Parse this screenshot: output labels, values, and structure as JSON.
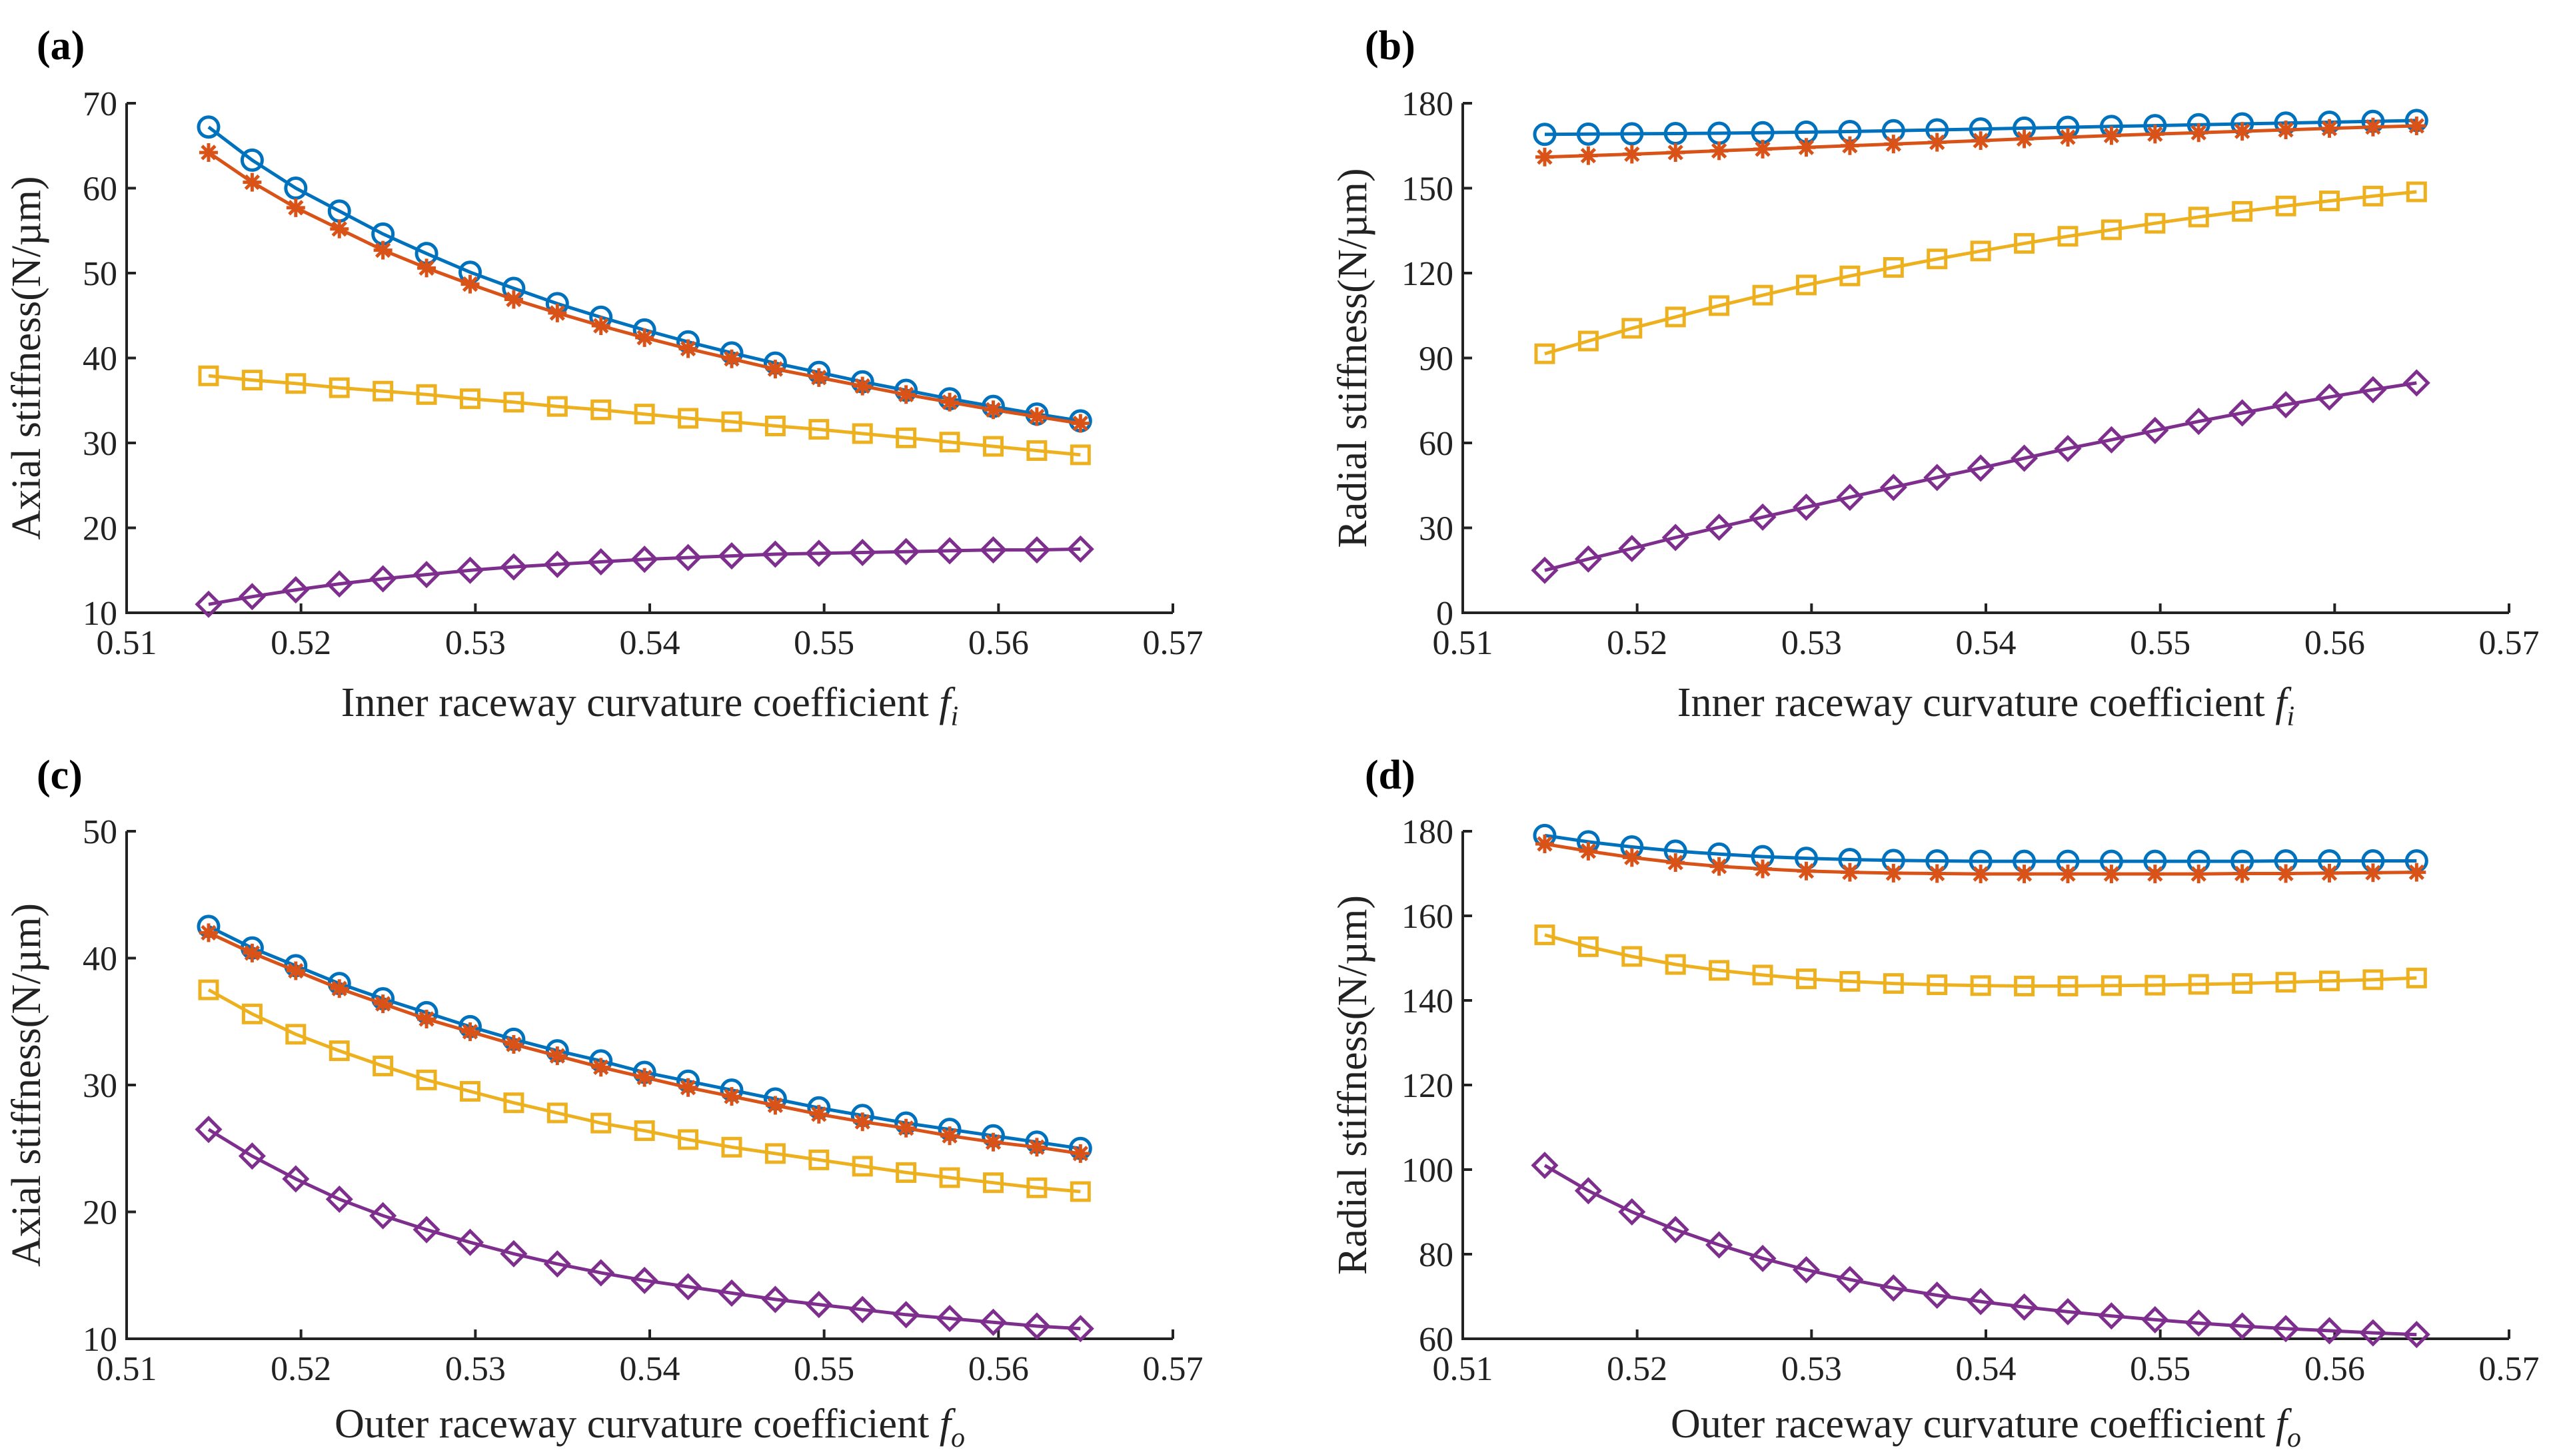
{
  "chart_data": [
    {
      "id": "a",
      "type": "line",
      "panel_label": "(a)",
      "xlabel": "Inner raceway curvature coefficient ",
      "xlabel_symbol": "f",
      "xlabel_subscript": "i",
      "ylabel": "Axial stiffness(N/µm)",
      "xlim": [
        0.51,
        0.57
      ],
      "ylim": [
        10,
        70
      ],
      "xticks": [
        0.51,
        0.52,
        0.53,
        0.54,
        0.55,
        0.56,
        0.57
      ],
      "xtick_labels": [
        "0.51",
        "0.52",
        "0.53",
        "0.54",
        "0.55",
        "0.56",
        "0.57"
      ],
      "yticks": [
        10,
        20,
        30,
        40,
        50,
        60,
        70
      ],
      "ytick_labels": [
        "10",
        "20",
        "30",
        "40",
        "50",
        "60",
        "70"
      ],
      "x": [
        0.5147,
        0.5172,
        0.5197,
        0.5222,
        0.5247,
        0.5272,
        0.5297,
        0.5322,
        0.5347,
        0.5372,
        0.5397,
        0.5422,
        0.5447,
        0.5472,
        0.5497,
        0.5522,
        0.5547,
        0.5572,
        0.5597,
        0.5622,
        0.5647
      ],
      "series": [
        {
          "name": "series-1",
          "color": "#0072BD",
          "marker": "circle",
          "values": [
            67.2,
            63.3,
            60.0,
            57.3,
            54.6,
            52.3,
            50.1,
            48.2,
            46.4,
            44.8,
            43.3,
            41.9,
            40.6,
            39.4,
            38.3,
            37.2,
            36.2,
            35.2,
            34.3,
            33.4,
            32.6
          ]
        },
        {
          "name": "series-2",
          "color": "#D95319",
          "marker": "asterisk",
          "values": [
            64.2,
            60.7,
            57.7,
            55.2,
            52.7,
            50.6,
            48.7,
            46.9,
            45.3,
            43.8,
            42.4,
            41.1,
            39.9,
            38.7,
            37.7,
            36.7,
            35.7,
            34.8,
            33.9,
            33.1,
            32.3
          ]
        },
        {
          "name": "series-3",
          "color": "#EDB120",
          "marker": "square",
          "values": [
            37.9,
            37.4,
            37.0,
            36.5,
            36.1,
            35.7,
            35.2,
            34.8,
            34.3,
            33.9,
            33.4,
            32.9,
            32.5,
            32.0,
            31.6,
            31.1,
            30.6,
            30.1,
            29.6,
            29.1,
            28.6
          ]
        },
        {
          "name": "series-4",
          "color": "#7E2F8E",
          "marker": "diamond",
          "values": [
            11.0,
            11.9,
            12.7,
            13.4,
            14.0,
            14.5,
            15.0,
            15.4,
            15.7,
            16.0,
            16.3,
            16.5,
            16.7,
            16.9,
            17.0,
            17.1,
            17.2,
            17.3,
            17.4,
            17.4,
            17.5
          ]
        }
      ]
    },
    {
      "id": "b",
      "type": "line",
      "panel_label": "(b)",
      "xlabel": "Inner raceway curvature coefficient ",
      "xlabel_symbol": "f",
      "xlabel_subscript": "i",
      "ylabel": "Radial stiffness(N/µm)",
      "xlim": [
        0.51,
        0.57
      ],
      "ylim": [
        0,
        180
      ],
      "xticks": [
        0.51,
        0.52,
        0.53,
        0.54,
        0.55,
        0.56,
        0.57
      ],
      "xtick_labels": [
        "0.51",
        "0.52",
        "0.53",
        "0.54",
        "0.55",
        "0.56",
        "0.57"
      ],
      "yticks": [
        0,
        30,
        60,
        90,
        120,
        150,
        180
      ],
      "ytick_labels": [
        "0",
        "30",
        "60",
        "90",
        "120",
        "150",
        "180"
      ],
      "x": [
        0.5147,
        0.5172,
        0.5197,
        0.5222,
        0.5247,
        0.5272,
        0.5297,
        0.5322,
        0.5347,
        0.5372,
        0.5397,
        0.5422,
        0.5447,
        0.5472,
        0.5497,
        0.5522,
        0.5547,
        0.5572,
        0.5597,
        0.5622,
        0.5647
      ],
      "series": [
        {
          "name": "series-1",
          "color": "#0072BD",
          "marker": "circle",
          "values": [
            169.0,
            169.1,
            169.2,
            169.3,
            169.4,
            169.6,
            169.8,
            170.0,
            170.3,
            170.6,
            170.9,
            171.2,
            171.5,
            171.8,
            172.1,
            172.4,
            172.7,
            173.0,
            173.3,
            173.6,
            173.9
          ]
        },
        {
          "name": "series-2",
          "color": "#D95319",
          "marker": "asterisk",
          "values": [
            161.0,
            161.5,
            162.0,
            162.6,
            163.2,
            163.8,
            164.4,
            165.0,
            165.6,
            166.2,
            166.8,
            167.4,
            168.0,
            168.6,
            169.1,
            169.6,
            170.1,
            170.6,
            171.1,
            171.6,
            172.0
          ]
        },
        {
          "name": "series-3",
          "color": "#EDB120",
          "marker": "square",
          "values": [
            91.5,
            96.0,
            100.5,
            104.5,
            108.5,
            112.2,
            115.8,
            119.0,
            122.0,
            125.0,
            127.8,
            130.5,
            133.0,
            135.3,
            137.6,
            139.8,
            141.8,
            143.7,
            145.5,
            147.2,
            148.7
          ]
        },
        {
          "name": "series-4",
          "color": "#7E2F8E",
          "marker": "diamond",
          "values": [
            15.0,
            19.0,
            22.7,
            26.6,
            30.2,
            33.8,
            37.3,
            40.8,
            44.3,
            47.8,
            51.1,
            54.6,
            58.0,
            61.1,
            64.4,
            67.6,
            70.6,
            73.5,
            76.2,
            78.8,
            81.2
          ]
        }
      ]
    },
    {
      "id": "c",
      "type": "line",
      "panel_label": "(c)",
      "xlabel": "Outer raceway curvature coefficient ",
      "xlabel_symbol": "f",
      "xlabel_subscript": "o",
      "ylabel": "Axial stiffness(N/µm)",
      "xlim": [
        0.51,
        0.57
      ],
      "ylim": [
        10,
        50
      ],
      "xticks": [
        0.51,
        0.52,
        0.53,
        0.54,
        0.55,
        0.56,
        0.57
      ],
      "xtick_labels": [
        "0.51",
        "0.52",
        "0.53",
        "0.54",
        "0.55",
        "0.56",
        "0.57"
      ],
      "yticks": [
        10,
        20,
        30,
        40,
        50
      ],
      "ytick_labels": [
        "10",
        "20",
        "30",
        "40",
        "50"
      ],
      "x": [
        0.5147,
        0.5172,
        0.5197,
        0.5222,
        0.5247,
        0.5272,
        0.5297,
        0.5322,
        0.5347,
        0.5372,
        0.5397,
        0.5422,
        0.5447,
        0.5472,
        0.5497,
        0.5522,
        0.5547,
        0.5572,
        0.5597,
        0.5622,
        0.5647
      ],
      "series": [
        {
          "name": "series-1",
          "color": "#0072BD",
          "marker": "circle",
          "values": [
            42.5,
            40.8,
            39.4,
            38.0,
            36.8,
            35.7,
            34.6,
            33.6,
            32.7,
            31.9,
            31.0,
            30.3,
            29.6,
            28.9,
            28.2,
            27.6,
            27.0,
            26.5,
            26.0,
            25.5,
            25.0
          ]
        },
        {
          "name": "series-2",
          "color": "#D95319",
          "marker": "asterisk",
          "values": [
            42.0,
            40.4,
            39.0,
            37.6,
            36.4,
            35.2,
            34.2,
            33.2,
            32.3,
            31.4,
            30.6,
            29.8,
            29.1,
            28.4,
            27.7,
            27.1,
            26.6,
            26.0,
            25.5,
            25.1,
            24.6
          ]
        },
        {
          "name": "series-3",
          "color": "#EDB120",
          "marker": "square",
          "values": [
            37.5,
            35.6,
            34.0,
            32.7,
            31.5,
            30.4,
            29.5,
            28.6,
            27.8,
            27.0,
            26.4,
            25.7,
            25.1,
            24.6,
            24.1,
            23.6,
            23.1,
            22.7,
            22.3,
            21.9,
            21.6
          ]
        },
        {
          "name": "series-4",
          "color": "#7E2F8E",
          "marker": "diamond",
          "values": [
            26.5,
            24.4,
            22.6,
            21.0,
            19.7,
            18.6,
            17.6,
            16.7,
            15.9,
            15.2,
            14.6,
            14.1,
            13.6,
            13.1,
            12.7,
            12.3,
            11.9,
            11.6,
            11.3,
            11.0,
            10.8
          ]
        }
      ]
    },
    {
      "id": "d",
      "type": "line",
      "panel_label": "(d)",
      "xlabel": "Outer raceway curvature coefficient ",
      "xlabel_symbol": "f",
      "xlabel_subscript": "o",
      "ylabel": "Radial stiffness(N/µm)",
      "xlim": [
        0.51,
        0.57
      ],
      "ylim": [
        60,
        180
      ],
      "xticks": [
        0.51,
        0.52,
        0.53,
        0.54,
        0.55,
        0.56,
        0.57
      ],
      "xtick_labels": [
        "0.51",
        "0.52",
        "0.53",
        "0.54",
        "0.55",
        "0.56",
        "0.57"
      ],
      "yticks": [
        60,
        80,
        100,
        120,
        140,
        160,
        180
      ],
      "ytick_labels": [
        "60",
        "80",
        "100",
        "120",
        "140",
        "160",
        "180"
      ],
      "x": [
        0.5147,
        0.5172,
        0.5197,
        0.5222,
        0.5247,
        0.5272,
        0.5297,
        0.5322,
        0.5347,
        0.5372,
        0.5397,
        0.5422,
        0.5447,
        0.5472,
        0.5497,
        0.5522,
        0.5547,
        0.5572,
        0.5597,
        0.5622,
        0.5647
      ],
      "series": [
        {
          "name": "series-1",
          "color": "#0072BD",
          "marker": "circle",
          "values": [
            179.0,
            177.5,
            176.3,
            175.3,
            174.6,
            174.0,
            173.6,
            173.3,
            173.1,
            173.0,
            172.9,
            172.9,
            172.9,
            172.9,
            172.9,
            172.9,
            172.9,
            173.0,
            173.0,
            173.0,
            173.0
          ]
        },
        {
          "name": "series-2",
          "color": "#D95319",
          "marker": "asterisk",
          "values": [
            177.0,
            175.3,
            173.8,
            172.6,
            171.7,
            171.1,
            170.6,
            170.3,
            170.1,
            170.0,
            169.9,
            169.9,
            169.9,
            169.9,
            169.9,
            169.9,
            170.0,
            170.0,
            170.1,
            170.2,
            170.3
          ]
        },
        {
          "name": "series-3",
          "color": "#EDB120",
          "marker": "square",
          "values": [
            155.5,
            152.7,
            150.4,
            148.5,
            147.1,
            146.0,
            145.1,
            144.5,
            144.0,
            143.7,
            143.5,
            143.4,
            143.4,
            143.5,
            143.6,
            143.8,
            144.0,
            144.3,
            144.6,
            144.9,
            145.3
          ]
        },
        {
          "name": "series-4",
          "color": "#7E2F8E",
          "marker": "diamond",
          "values": [
            101.0,
            95.0,
            90.0,
            85.8,
            82.2,
            79.0,
            76.3,
            74.0,
            72.0,
            70.3,
            68.8,
            67.5,
            66.4,
            65.4,
            64.5,
            63.7,
            63.0,
            62.4,
            61.9,
            61.4,
            61.0
          ]
        }
      ]
    }
  ]
}
